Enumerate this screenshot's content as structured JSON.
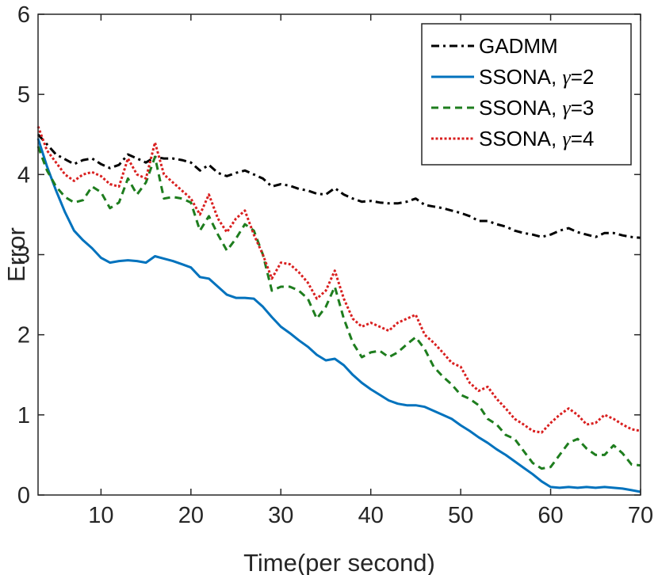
{
  "chart_data": {
    "type": "line",
    "xlabel": "Time(per second)",
    "ylabel": "Error",
    "xlim": [
      3,
      70
    ],
    "ylim": [
      0,
      6
    ],
    "xticks": [
      10,
      20,
      30,
      40,
      50,
      60,
      70
    ],
    "yticks": [
      0,
      1,
      2,
      3,
      4,
      5,
      6
    ],
    "grid": false,
    "legend_position": "top-right",
    "series": [
      {
        "name": "GADMM",
        "label_prefix": "GADMM",
        "gamma_symbol": "",
        "gamma_value": "",
        "color": "#000000",
        "style": "dashdot",
        "x": [
          3,
          5,
          7,
          8,
          9,
          10,
          11,
          12,
          13,
          14,
          15,
          16,
          17,
          18,
          19,
          20,
          21,
          22,
          23,
          24,
          25,
          26,
          27,
          28,
          29,
          30,
          31,
          32,
          33,
          34,
          35,
          36,
          37,
          38,
          39,
          40,
          41,
          42,
          43,
          44,
          45,
          46,
          47,
          48,
          49,
          50,
          51,
          52,
          53,
          54,
          55,
          56,
          57,
          58,
          59,
          60,
          61,
          62,
          63,
          64,
          65,
          66,
          67,
          68,
          69,
          70
        ],
        "y": [
          4.5,
          4.25,
          4.13,
          4.18,
          4.2,
          4.13,
          4.08,
          4.12,
          4.25,
          4.2,
          4.15,
          4.22,
          4.2,
          4.2,
          4.18,
          4.15,
          4.05,
          4.12,
          4.02,
          3.98,
          4.02,
          4.05,
          4.0,
          3.95,
          3.85,
          3.88,
          3.86,
          3.82,
          3.8,
          3.76,
          3.75,
          3.83,
          3.75,
          3.7,
          3.66,
          3.67,
          3.65,
          3.64,
          3.64,
          3.66,
          3.7,
          3.62,
          3.6,
          3.58,
          3.55,
          3.52,
          3.48,
          3.42,
          3.42,
          3.38,
          3.35,
          3.3,
          3.27,
          3.25,
          3.22,
          3.25,
          3.3,
          3.33,
          3.28,
          3.25,
          3.22,
          3.27,
          3.27,
          3.24,
          3.22,
          3.21
        ]
      },
      {
        "name": "SSONA, γ=2",
        "label_prefix": "SSONA, ",
        "gamma_symbol": "γ",
        "gamma_value": "=2",
        "color": "#0072BD",
        "style": "solid",
        "x": [
          3,
          4,
          5,
          6,
          7,
          8,
          9,
          10,
          11,
          12,
          13,
          14,
          15,
          16,
          17,
          18,
          19,
          20,
          21,
          22,
          23,
          24,
          25,
          26,
          27,
          28,
          29,
          30,
          31,
          32,
          33,
          34,
          35,
          36,
          37,
          38,
          39,
          40,
          41,
          42,
          43,
          44,
          45,
          46,
          47,
          48,
          49,
          50,
          51,
          52,
          53,
          54,
          55,
          56,
          57,
          58,
          59,
          60,
          61,
          62,
          63,
          64,
          65,
          66,
          67,
          68,
          69,
          70
        ],
        "y": [
          4.45,
          4.1,
          3.8,
          3.53,
          3.3,
          3.18,
          3.08,
          2.96,
          2.9,
          2.92,
          2.93,
          2.92,
          2.9,
          2.98,
          2.95,
          2.92,
          2.88,
          2.84,
          2.72,
          2.7,
          2.6,
          2.5,
          2.46,
          2.46,
          2.45,
          2.35,
          2.22,
          2.1,
          2.02,
          1.93,
          1.85,
          1.75,
          1.68,
          1.7,
          1.62,
          1.5,
          1.4,
          1.32,
          1.25,
          1.18,
          1.14,
          1.12,
          1.12,
          1.1,
          1.05,
          1.0,
          0.95,
          0.87,
          0.8,
          0.72,
          0.65,
          0.57,
          0.5,
          0.42,
          0.34,
          0.26,
          0.17,
          0.1,
          0.09,
          0.1,
          0.09,
          0.1,
          0.09,
          0.1,
          0.09,
          0.08,
          0.06,
          0.04
        ]
      },
      {
        "name": "SSONA, γ=3",
        "label_prefix": "SSONA, ",
        "gamma_symbol": "γ",
        "gamma_value": "=3",
        "color": "#1E7D1E",
        "style": "dashed",
        "x": [
          3,
          4,
          5,
          6,
          7,
          8,
          9,
          10,
          11,
          12,
          13,
          14,
          15,
          16,
          17,
          18,
          19,
          20,
          21,
          22,
          23,
          24,
          25,
          26,
          27,
          28,
          29,
          30,
          31,
          32,
          33,
          34,
          35,
          36,
          37,
          38,
          39,
          40,
          41,
          42,
          43,
          44,
          45,
          46,
          47,
          48,
          49,
          50,
          51,
          52,
          53,
          54,
          55,
          56,
          57,
          58,
          59,
          60,
          61,
          62,
          63,
          64,
          65,
          66,
          67,
          68,
          69,
          70
        ],
        "y": [
          4.35,
          4.05,
          3.85,
          3.72,
          3.65,
          3.68,
          3.85,
          3.78,
          3.58,
          3.65,
          3.95,
          3.75,
          3.9,
          4.22,
          3.7,
          3.72,
          3.7,
          3.65,
          3.3,
          3.48,
          3.25,
          3.05,
          3.2,
          3.38,
          3.3,
          3.0,
          2.55,
          2.6,
          2.6,
          2.55,
          2.45,
          2.2,
          2.35,
          2.6,
          2.2,
          1.9,
          1.72,
          1.78,
          1.8,
          1.72,
          1.78,
          1.88,
          1.97,
          1.82,
          1.6,
          1.48,
          1.38,
          1.25,
          1.2,
          1.12,
          0.95,
          0.88,
          0.75,
          0.7,
          0.55,
          0.4,
          0.33,
          0.35,
          0.5,
          0.65,
          0.7,
          0.58,
          0.5,
          0.5,
          0.62,
          0.52,
          0.38,
          0.37
        ]
      },
      {
        "name": "SSONA, γ=4",
        "label_prefix": "SSONA, ",
        "gamma_symbol": "γ",
        "gamma_value": "=4",
        "color": "#D92020",
        "style": "dotted",
        "x": [
          3,
          4,
          5,
          6,
          7,
          8,
          9,
          10,
          11,
          12,
          13,
          14,
          15,
          16,
          17,
          18,
          19,
          20,
          21,
          22,
          23,
          24,
          25,
          26,
          27,
          28,
          29,
          30,
          31,
          32,
          33,
          34,
          35,
          36,
          37,
          38,
          39,
          40,
          41,
          42,
          43,
          44,
          45,
          46,
          47,
          48,
          49,
          50,
          51,
          52,
          53,
          54,
          55,
          56,
          57,
          58,
          59,
          60,
          61,
          62,
          63,
          64,
          65,
          66,
          67,
          68,
          69,
          70
        ],
        "y": [
          4.6,
          4.3,
          4.15,
          4.0,
          3.92,
          4.0,
          4.03,
          3.98,
          3.88,
          3.85,
          4.2,
          4.0,
          3.95,
          4.4,
          4.0,
          3.9,
          3.8,
          3.7,
          3.5,
          3.75,
          3.45,
          3.28,
          3.45,
          3.55,
          3.25,
          3.0,
          2.7,
          2.9,
          2.88,
          2.78,
          2.65,
          2.45,
          2.55,
          2.8,
          2.45,
          2.2,
          2.1,
          2.15,
          2.1,
          2.05,
          2.15,
          2.2,
          2.25,
          2.0,
          1.9,
          1.78,
          1.65,
          1.6,
          1.4,
          1.3,
          1.35,
          1.2,
          1.08,
          0.95,
          0.88,
          0.8,
          0.78,
          0.9,
          1.0,
          1.08,
          1.0,
          0.88,
          0.9,
          1.0,
          0.95,
          0.88,
          0.82,
          0.8
        ]
      }
    ]
  }
}
